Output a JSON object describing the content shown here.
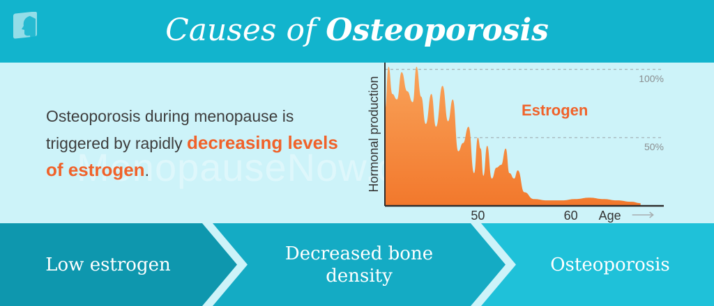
{
  "header": {
    "title_prefix": "Causes of",
    "title_main": "Osteoporosis"
  },
  "intro": {
    "text_before": "Osteoporosis during menopause is triggered by rapidly ",
    "highlight": "decreasing levels of estrogen",
    "text_after": "."
  },
  "watermark": "MenopauseNow.com",
  "flow": {
    "steps": [
      "Low estrogen",
      "Decreased bone density",
      "Osteoporosis"
    ]
  },
  "colors": {
    "header": "#12b4cd",
    "panel": "#cdf3f9",
    "accent": "#f0622a",
    "area_top": "#f9a35a",
    "area_bottom": "#f2782c",
    "flow_dark": "#0e97ae",
    "flow_mid": "#14abc4",
    "flow_light": "#1fc1d9"
  },
  "chart_data": {
    "type": "area",
    "ylabel": "Hormonal production",
    "xlabel": "Age",
    "series_label": "Estrogen",
    "x_ticks": [
      50,
      60
    ],
    "y_ticks": [
      {
        "value": 100,
        "label": "100%"
      },
      {
        "value": 50,
        "label": "50%"
      }
    ],
    "xlim": [
      40,
      70
    ],
    "ylim": [
      0,
      105
    ],
    "grid": "dashed horizontal at 100% and 50%",
    "series": [
      {
        "x": [
          40.0,
          40.4,
          40.8,
          41.3,
          41.8,
          42.4,
          43.0,
          43.4,
          43.9,
          44.4,
          45.0,
          45.5,
          46.2,
          46.8,
          47.3,
          47.9,
          48.4,
          49.0,
          49.6,
          50.0,
          50.3,
          50.6,
          51.0,
          51.5,
          52.0,
          52.5,
          53.0,
          53.4,
          53.9,
          54.3,
          55.0,
          56.0,
          57.5,
          59.0,
          60.5,
          62.0,
          63.5,
          65.0,
          66.5,
          67.5
        ],
        "y": [
          70,
          102,
          82,
          78,
          98,
          84,
          76,
          102,
          80,
          60,
          82,
          58,
          88,
          62,
          78,
          40,
          46,
          58,
          24,
          50,
          42,
          22,
          44,
          20,
          28,
          30,
          42,
          24,
          20,
          26,
          10,
          5,
          4,
          4,
          5,
          6,
          5,
          4,
          3,
          2
        ]
      }
    ]
  }
}
